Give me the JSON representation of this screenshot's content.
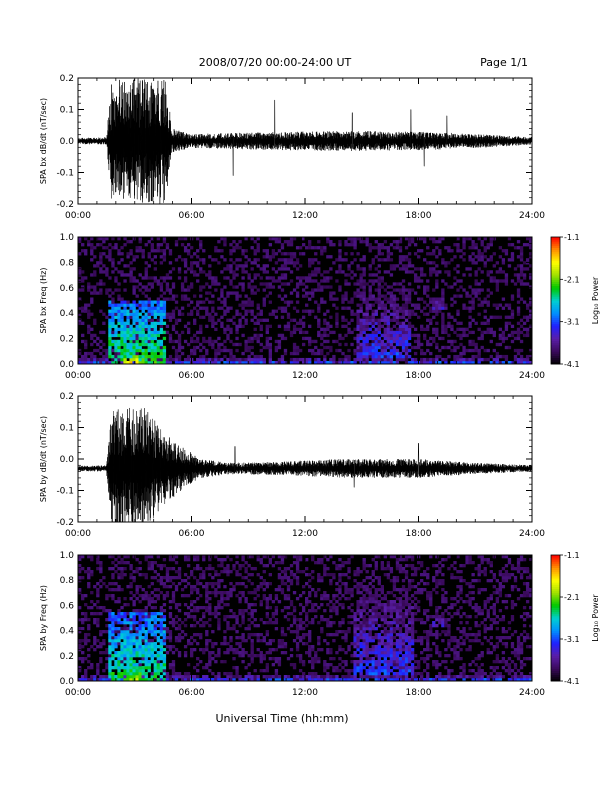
{
  "header": {
    "title": "2008/07/20  00:00-24:00 UT",
    "page": "Page 1/1"
  },
  "xlabel": "Universal Time (hh:mm)",
  "colorbar": {
    "label": "Log₁₀ Power",
    "ticks": [
      "-1.1",
      "-2.1",
      "-3.1",
      "-4.1"
    ],
    "range": [
      -4.1,
      -1.1
    ],
    "colors": [
      "#000000",
      "#3a0a5c",
      "#5a1ea8",
      "#2020ff",
      "#0090ff",
      "#00d0d0",
      "#00c800",
      "#a0e000",
      "#ffff00",
      "#ff9000",
      "#ff0000"
    ]
  },
  "chart_data": [
    {
      "type": "line",
      "ylabel": "SPA bx dB/dt (nT/sec)",
      "xlim": [
        0,
        24
      ],
      "ylim": [
        -0.2,
        0.2
      ],
      "xticks": [
        "00:00",
        "06:00",
        "12:00",
        "18:00",
        "24:00"
      ],
      "yticks": [
        "0.2",
        "0.1",
        "0.0",
        "-0.1",
        "-0.2"
      ],
      "baseline": 0.0,
      "envelope": [
        {
          "t": 0.0,
          "amp": 0.01
        },
        {
          "t": 1.5,
          "amp": 0.012
        },
        {
          "t": 1.8,
          "amp": 0.2
        },
        {
          "t": 4.6,
          "amp": 0.2
        },
        {
          "t": 5.0,
          "amp": 0.04
        },
        {
          "t": 6.0,
          "amp": 0.022
        },
        {
          "t": 10.0,
          "amp": 0.028
        },
        {
          "t": 12.0,
          "amp": 0.03
        },
        {
          "t": 15.0,
          "amp": 0.032
        },
        {
          "t": 19.0,
          "amp": 0.028
        },
        {
          "t": 21.0,
          "amp": 0.022
        },
        {
          "t": 24.0,
          "amp": 0.012
        }
      ],
      "spikes": [
        {
          "t": 8.2,
          "value": -0.11
        },
        {
          "t": 10.4,
          "value": 0.13
        },
        {
          "t": 14.5,
          "value": 0.09
        },
        {
          "t": 17.6,
          "value": 0.1
        },
        {
          "t": 18.3,
          "value": -0.08
        },
        {
          "t": 19.5,
          "value": 0.08
        }
      ]
    },
    {
      "type": "heatmap",
      "ylabel": "SPA bx Freq (Hz)",
      "xlim": [
        0,
        24
      ],
      "ylim": [
        0.0,
        1.0
      ],
      "xticks": [
        "00:00",
        "06:00",
        "12:00",
        "18:00",
        "24:00"
      ],
      "yticks": [
        "1.0",
        "0.8",
        "0.6",
        "0.4",
        "0.2",
        "0.0"
      ],
      "features": [
        {
          "t0": 1.6,
          "t1": 4.6,
          "f0": 0.0,
          "f1": 0.5,
          "level": -2.3
        },
        {
          "t0": 2.4,
          "t1": 3.2,
          "f0": 0.0,
          "f1": 0.08,
          "level": -1.6
        },
        {
          "t0": 14.8,
          "t1": 17.6,
          "f0": 0.05,
          "f1": 0.6,
          "level": -3.2
        },
        {
          "t0": 18.7,
          "t1": 19.4,
          "f0": 0.42,
          "f1": 0.54,
          "level": -3.3
        },
        {
          "t0": 0.0,
          "t1": 24.0,
          "f0": 0.0,
          "f1": 0.04,
          "level": -3.0
        }
      ]
    },
    {
      "type": "line",
      "ylabel": "SPA by dB/dt (nT/sec)",
      "xlim": [
        0,
        24
      ],
      "ylim": [
        -0.2,
        0.2
      ],
      "xticks": [
        "00:00",
        "06:00",
        "12:00",
        "18:00",
        "24:00"
      ],
      "yticks": [
        "0.2",
        "0.1",
        "0.0",
        "-0.1",
        "-0.2"
      ],
      "baseline": -0.03,
      "envelope": [
        {
          "t": 0.0,
          "amp": 0.008
        },
        {
          "t": 1.5,
          "amp": 0.01
        },
        {
          "t": 1.8,
          "amp": 0.2
        },
        {
          "t": 3.5,
          "amp": 0.2
        },
        {
          "t": 4.5,
          "amp": 0.12
        },
        {
          "t": 5.5,
          "amp": 0.07
        },
        {
          "t": 6.5,
          "amp": 0.03
        },
        {
          "t": 8.0,
          "amp": 0.018
        },
        {
          "t": 10.0,
          "amp": 0.02
        },
        {
          "t": 14.0,
          "amp": 0.03
        },
        {
          "t": 18.0,
          "amp": 0.03
        },
        {
          "t": 21.0,
          "amp": 0.018
        },
        {
          "t": 24.0,
          "amp": 0.01
        }
      ],
      "spikes": [
        {
          "t": 8.3,
          "value": 0.04
        },
        {
          "t": 14.6,
          "value": -0.09
        },
        {
          "t": 18.0,
          "value": 0.05
        }
      ]
    },
    {
      "type": "heatmap",
      "ylabel": "SPA by Freq (Hz)",
      "xlim": [
        0,
        24
      ],
      "ylim": [
        0.0,
        1.0
      ],
      "xticks": [
        "00:00",
        "06:00",
        "12:00",
        "18:00",
        "24:00"
      ],
      "yticks": [
        "1.0",
        "0.8",
        "0.6",
        "0.4",
        "0.2",
        "0.0"
      ],
      "features": [
        {
          "t0": 1.6,
          "t1": 4.6,
          "f0": 0.0,
          "f1": 0.55,
          "level": -2.4
        },
        {
          "t0": 2.6,
          "t1": 3.4,
          "f0": 0.0,
          "f1": 0.1,
          "level": -1.9
        },
        {
          "t0": 14.6,
          "t1": 17.8,
          "f0": 0.05,
          "f1": 0.75,
          "level": -3.2
        },
        {
          "t0": 18.7,
          "t1": 19.4,
          "f0": 0.42,
          "f1": 0.58,
          "level": -3.3
        },
        {
          "t0": 0.0,
          "t1": 24.0,
          "f0": 0.0,
          "f1": 0.04,
          "level": -3.0
        }
      ]
    }
  ]
}
